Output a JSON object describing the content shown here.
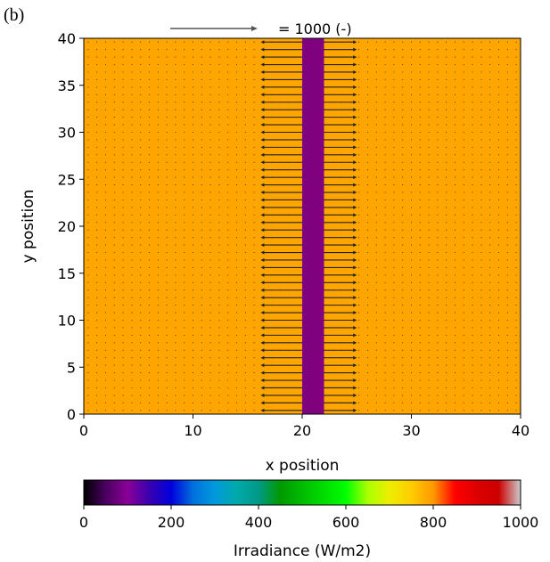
{
  "panel_label": "(b)",
  "chart_data": {
    "type": "heatmap",
    "subtype": "irradiance field with quiver overlay",
    "xlabel": "x position",
    "ylabel": "y position",
    "xlim": [
      0,
      40
    ],
    "ylim": [
      0,
      40
    ],
    "x_ticks": [
      "0",
      "10",
      "20",
      "30",
      "40"
    ],
    "y_ticks": [
      "0",
      "5",
      "10",
      "15",
      "20",
      "25",
      "30",
      "35",
      "40"
    ],
    "field": {
      "background_value": 820,
      "background_color": "#FFA500",
      "stripe": {
        "x_range": [
          20,
          22
        ],
        "value": 60,
        "color": "#800080"
      }
    },
    "quiver": {
      "key_label": "= 1000 (-)",
      "key_length_x_units": 8,
      "y_spacing": 0.8,
      "arrow_rows": [
        {
          "x_start": 20,
          "x_end": 16.2
        },
        {
          "x_start": 22,
          "x_end": 25.0
        }
      ],
      "dot_grid_spacing": 0.8
    },
    "colorbar": {
      "label": "Irradiance (W/m2)",
      "range": [
        0,
        1000
      ],
      "ticks": [
        "0",
        "200",
        "400",
        "600",
        "800",
        "1000"
      ],
      "colormap": "nipy_spectral"
    }
  }
}
